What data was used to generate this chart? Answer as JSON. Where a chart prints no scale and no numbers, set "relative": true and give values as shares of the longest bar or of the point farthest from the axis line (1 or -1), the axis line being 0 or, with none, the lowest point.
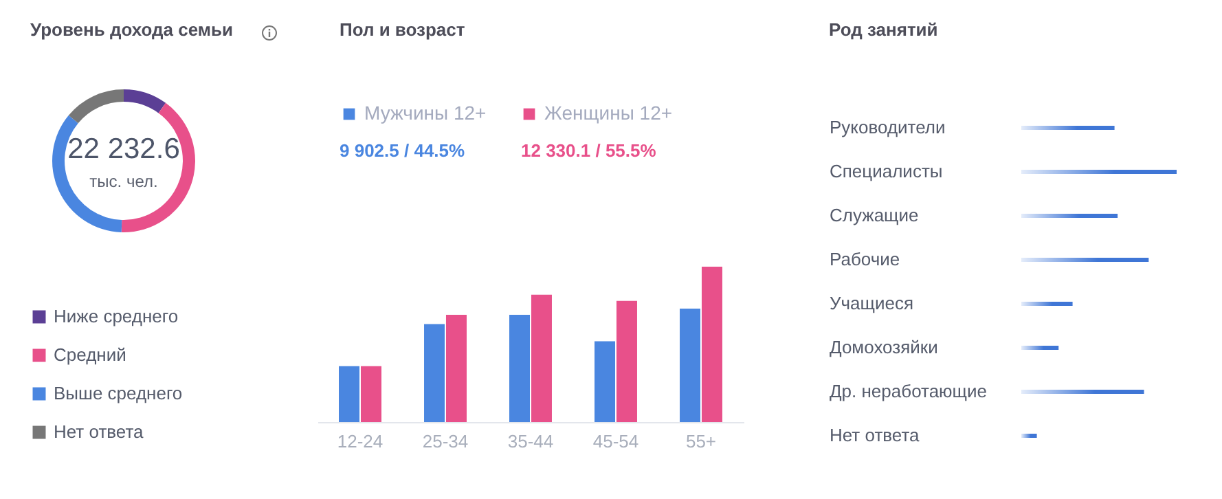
{
  "chart_data": [
    {
      "type": "donut",
      "title": "Уровень дохода семьи",
      "categories": [
        "Ниже среднего",
        "Средний",
        "Выше среднего",
        "Нет ответа"
      ],
      "values": [
        10,
        40.5,
        35.5,
        14
      ],
      "colors": [
        "#5b3f95",
        "#e8508a",
        "#4a86e0",
        "#777777"
      ],
      "legend": "bottom",
      "annotations": [
        "22 232.6",
        "тыс. чел."
      ]
    },
    {
      "type": "bar",
      "title": "Пол и возраст",
      "categories": [
        "12-24",
        "25-34",
        "35-44",
        "45-54",
        "55+"
      ],
      "relative": true,
      "legend": "top left",
      "series": [
        {
          "name": "Мужчины 12+",
          "color": "#4a86e0",
          "values": [
            0.36,
            0.63,
            0.69,
            0.52,
            0.73
          ]
        },
        {
          "name": "Женщины 12+",
          "color": "#e8508a",
          "values": [
            0.36,
            0.69,
            0.82,
            0.78,
            1
          ]
        }
      ],
      "annotations": [
        "9 902.5 / 44.5%",
        "12 330.1 / 55.5%"
      ]
    },
    {
      "type": "bar",
      "orientation": "horizontal",
      "title": "Род занятий",
      "relative": true,
      "categories": [
        "Руководители",
        "Специалисты",
        "Служащие",
        "Рабочие",
        "Учащиеся",
        "Домохозяйки",
        "Др. неработающие",
        "Нет ответа"
      ],
      "values": [
        0.6,
        1,
        0.62,
        0.82,
        0.33,
        0.24,
        0.79,
        0.1
      ],
      "color": "#3f76d6"
    }
  ]
}
